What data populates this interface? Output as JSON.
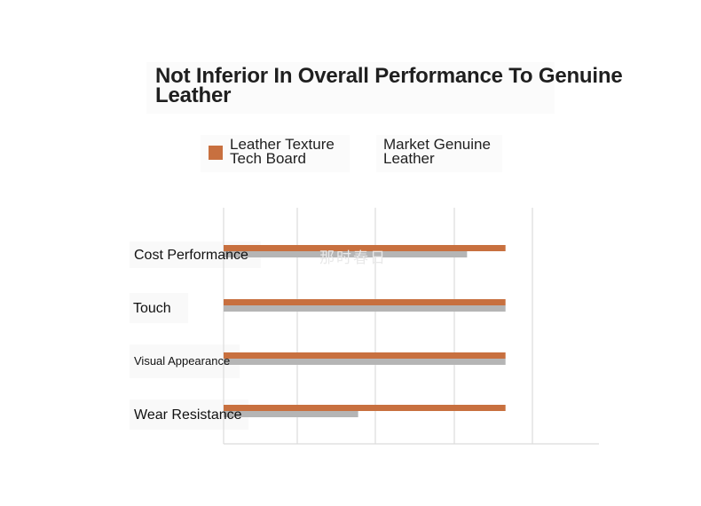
{
  "chart_data": {
    "type": "bar",
    "orientation": "horizontal",
    "title": "Not Inferior In Overall Performance To Genuine Leather",
    "categories": [
      "Cost Performance",
      "Touch",
      "Visual Appearance",
      "Wear Resistance"
    ],
    "series": [
      {
        "name": "Leather Texture Tech Board",
        "color": "#c8703f",
        "values": [
          4.4,
          4.4,
          4.4,
          4.4
        ]
      },
      {
        "name": "Market Genuine Leather",
        "color": "#b5b5b5",
        "values": [
          3.8,
          4.4,
          4.4,
          2.1
        ]
      }
    ],
    "xlim": [
      0,
      5
    ],
    "grid": true,
    "legend_position": "top"
  },
  "watermark": "那时春日"
}
